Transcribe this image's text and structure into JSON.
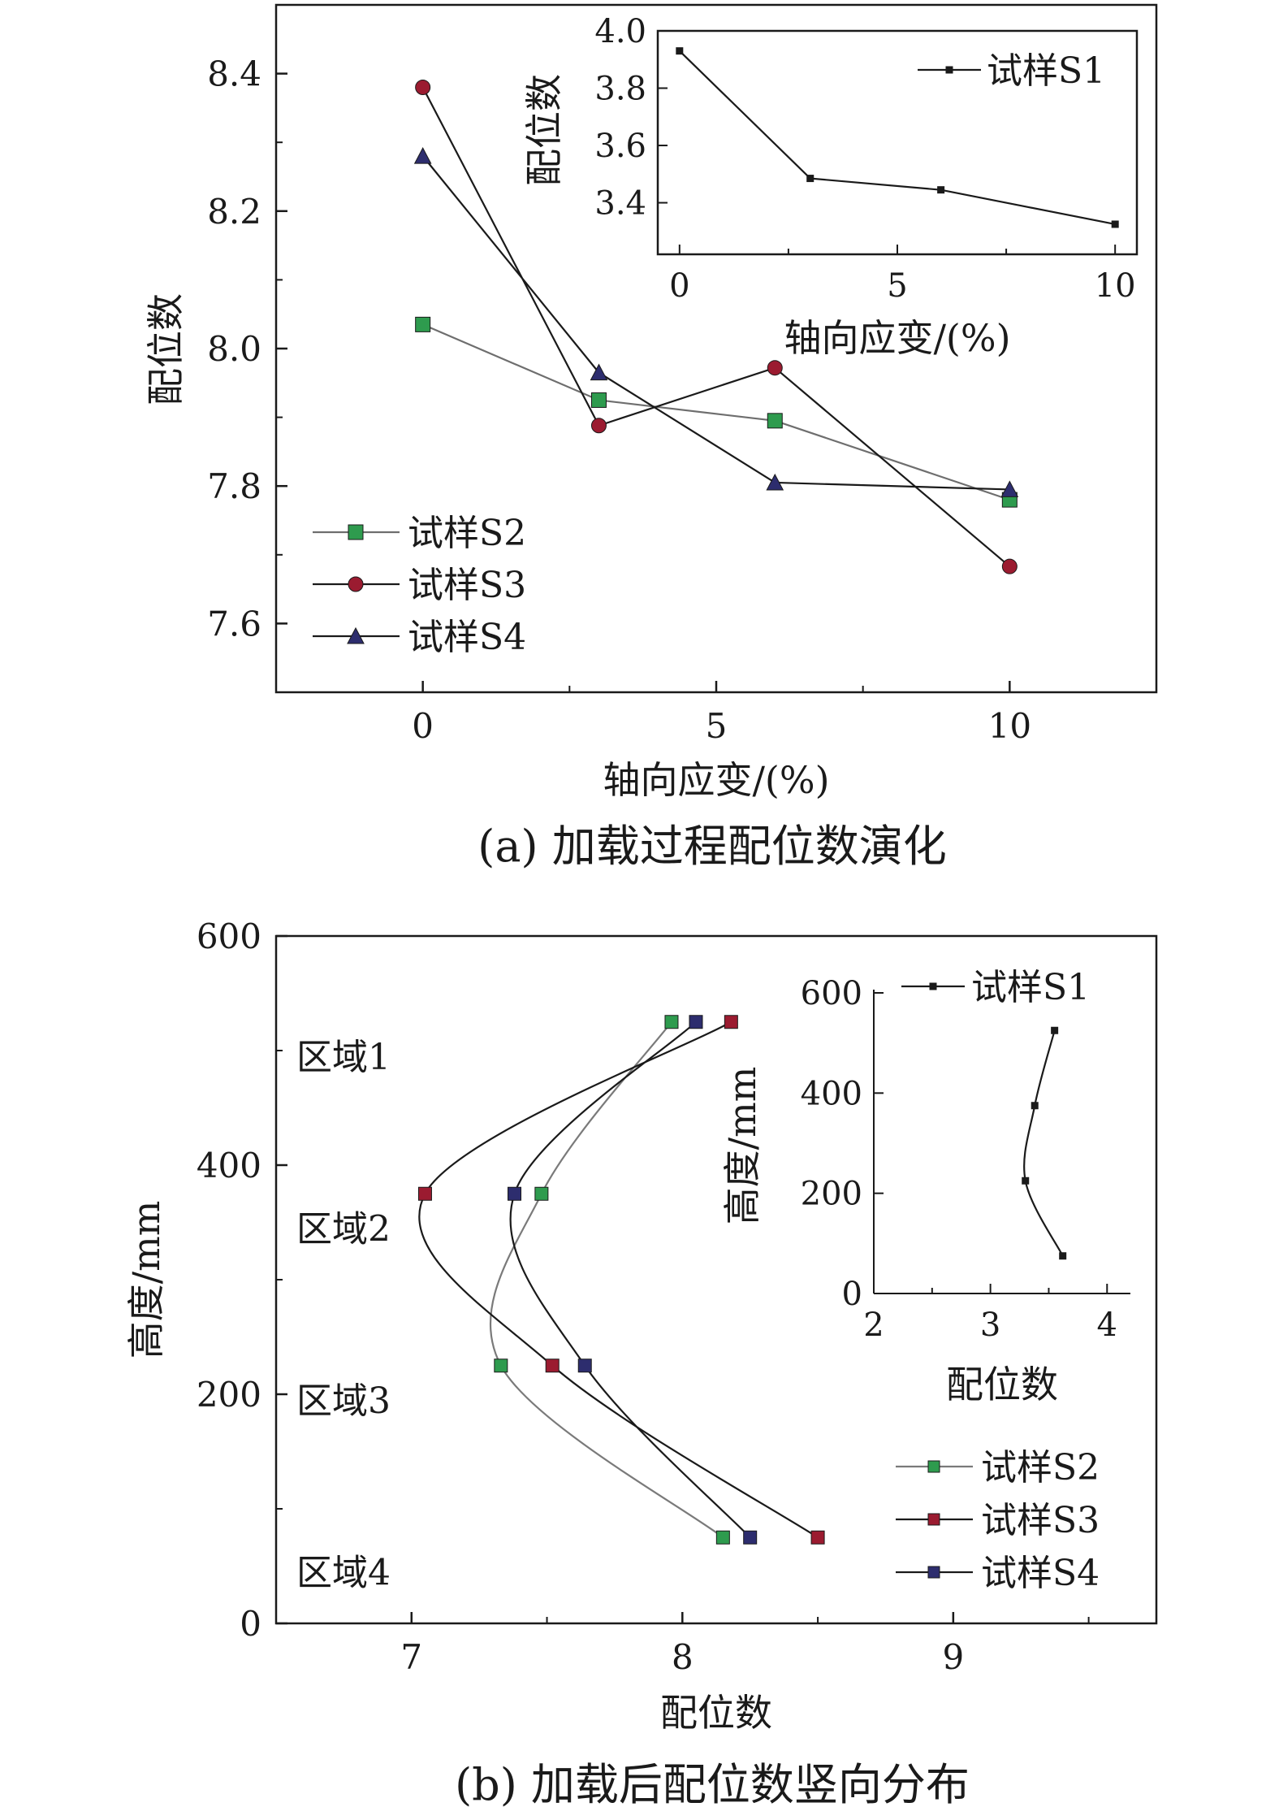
{
  "chart_data": [
    {
      "type": "line",
      "caption": "(a) 加载过程配位数演化",
      "xlabel": "轴向应变/(%)",
      "ylabel": "配位数",
      "xlim": [
        -2.5,
        12.5
      ],
      "ylim": [
        7.5,
        8.5
      ],
      "xticks": [
        0,
        5,
        10
      ],
      "yticks": [
        7.6,
        7.8,
        8.0,
        8.2,
        8.4
      ],
      "x": [
        0,
        3,
        6,
        10
      ],
      "series": [
        {
          "name": "试样S2",
          "marker": "square",
          "color": "#6e6e6e",
          "marker_color": "#2e9b4e",
          "values": [
            8.035,
            7.925,
            7.895,
            7.78
          ]
        },
        {
          "name": "试样S3",
          "marker": "circle",
          "color": "#1a1a1a",
          "marker_color": "#9b1b30",
          "values": [
            8.38,
            7.888,
            7.972,
            7.683
          ]
        },
        {
          "name": "试样S4",
          "marker": "triangle",
          "color": "#1a1a1a",
          "marker_color": "#2d2d6e",
          "values": [
            8.28,
            7.965,
            7.805,
            7.795
          ]
        }
      ],
      "legend_position": "bottom-left",
      "inset": {
        "type": "line",
        "xlabel": "轴向应变/(%)",
        "ylabel": "配位数",
        "xlim": [
          -0.5,
          10.5
        ],
        "ylim": [
          3.22,
          4.0
        ],
        "xticks": [
          0,
          5,
          10
        ],
        "yticks": [
          3.4,
          3.6,
          3.8,
          4.0
        ],
        "ytick_labels": [
          "3.4",
          "3.6",
          "3.8",
          "4.0"
        ],
        "x": [
          0,
          3,
          6,
          10
        ],
        "series": [
          {
            "name": "试样S1",
            "marker": "small-square",
            "color": "#1a1a1a",
            "values": [
              3.93,
              3.485,
              3.445,
              3.325
            ]
          }
        ],
        "legend_position": "top-right"
      }
    },
    {
      "type": "line",
      "caption": "(b) 加载后配位数竖向分布",
      "xlabel": "配位数",
      "ylabel": "高度/mm",
      "xlim": [
        6.5,
        9.75
      ],
      "ylim": [
        0,
        600
      ],
      "xticks": [
        7,
        8,
        9
      ],
      "yticks": [
        0,
        200,
        400,
        600
      ],
      "smooth": true,
      "zones": [
        "区域1",
        "区域2",
        "区域3",
        "区域4"
      ],
      "series": [
        {
          "name": "试样S2",
          "marker": "square",
          "color": "#7a7a7a",
          "marker_color": "#2e9b4e",
          "x": [
            7.96,
            7.48,
            7.33,
            8.15
          ],
          "y": [
            525,
            375,
            225,
            75
          ]
        },
        {
          "name": "试样S3",
          "marker": "square",
          "color": "#1a1a1a",
          "marker_color": "#9b1b30",
          "x": [
            8.18,
            7.05,
            7.52,
            8.5
          ],
          "y": [
            525,
            375,
            225,
            75
          ]
        },
        {
          "name": "试样S4",
          "marker": "square",
          "color": "#1a1a1a",
          "marker_color": "#2d2d6e",
          "x": [
            8.05,
            7.38,
            7.64,
            8.25
          ],
          "y": [
            525,
            375,
            225,
            75
          ]
        }
      ],
      "legend_position": "bottom-right",
      "inset": {
        "type": "line",
        "xlabel": "配位数",
        "ylabel": "高度/mm",
        "xlim": [
          2,
          4.2
        ],
        "ylim": [
          0,
          600
        ],
        "xticks": [
          2,
          3,
          4
        ],
        "yticks": [
          0,
          200,
          400,
          600
        ],
        "smooth": true,
        "series": [
          {
            "name": "试样S1",
            "marker": "small-square",
            "color": "#1a1a1a",
            "x": [
              3.55,
              3.38,
              3.3,
              3.62
            ],
            "y": [
              525,
              375,
              225,
              75
            ]
          }
        ],
        "legend_position": "top-left"
      }
    }
  ]
}
